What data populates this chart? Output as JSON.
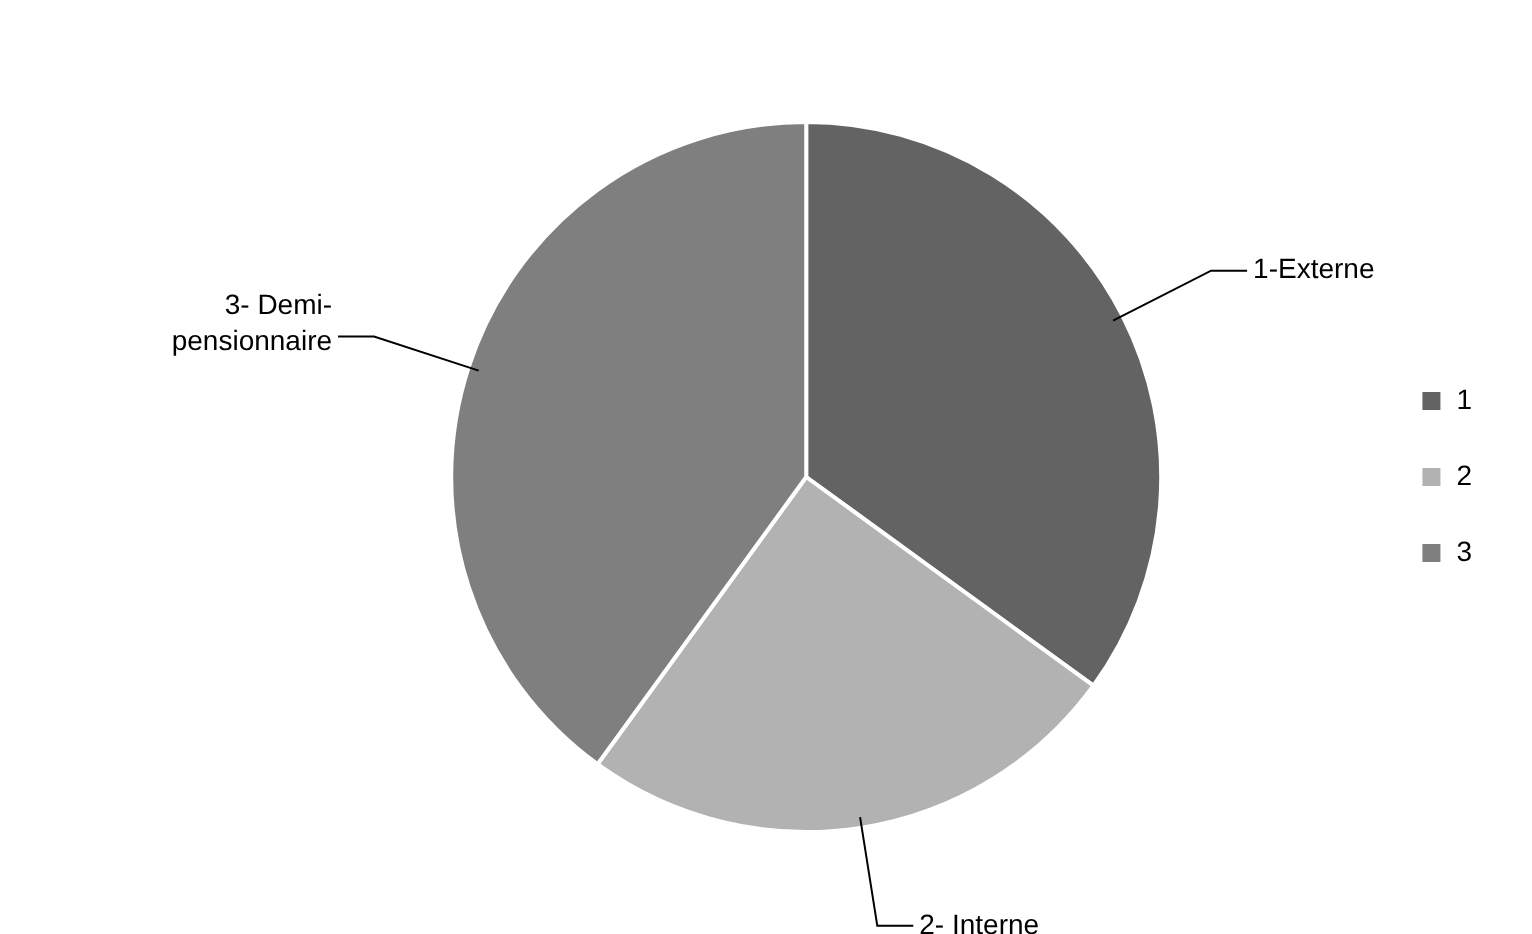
{
  "chart_data": {
    "type": "pie",
    "categories": [
      "1",
      "2",
      "3"
    ],
    "values": [
      35,
      25,
      40
    ],
    "colors": [
      "#636363",
      "#b2b2b2",
      "#7f7f7f"
    ],
    "legend": "right",
    "annotations": [
      "1-Externe",
      "2- Interne",
      "3- Demi-pensionnaire"
    ]
  }
}
